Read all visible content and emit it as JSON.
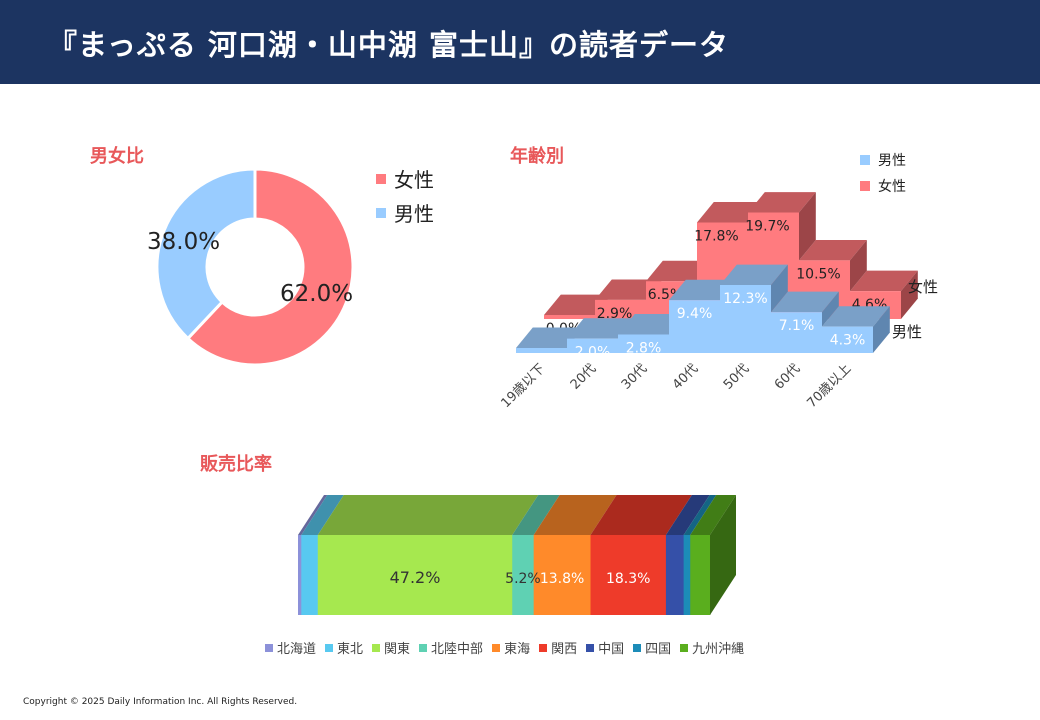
{
  "header": {
    "title": "『まっぷる 河口湖・山中湖 富士山』の読者データ"
  },
  "footer": {
    "copyright": "Copyright © 2025 Daily Information Inc. All Rights Reserved."
  },
  "sections": {
    "gender": "男女比",
    "age": "年齢別",
    "sales": "販売比率"
  },
  "colors": {
    "female": "#ff7b7f",
    "male": "#99ccff",
    "regions": [
      "#8c91d9",
      "#58c9f0",
      "#a6e84f",
      "#5fd1b3",
      "#ff8a2a",
      "#ee3b2a",
      "#3550a8",
      "#1c8cb8",
      "#5aae1e"
    ]
  },
  "chart_data": [
    {
      "type": "pie",
      "title": "男女比",
      "labels": [
        "女性",
        "男性"
      ],
      "values": [
        62.0,
        38.0
      ],
      "value_labels": [
        "62.0%",
        "38.0%"
      ],
      "donut": true,
      "legend": "right"
    },
    {
      "type": "bar",
      "title": "年齢別",
      "style": "3d-stepped-area",
      "categories": [
        "19歳以下",
        "20代",
        "30代",
        "40代",
        "50代",
        "60代",
        "70歳以上"
      ],
      "series": [
        {
          "name": "男性",
          "values": [
            0.2,
            2.0,
            2.8,
            9.4,
            12.3,
            7.1,
            4.3
          ],
          "labels": [
            "0.2%",
            "2.0%",
            "2.8%",
            "9.4%",
            "12.3%",
            "7.1%",
            "4.3%"
          ]
        },
        {
          "name": "女性",
          "values": [
            0.0,
            2.9,
            6.5,
            17.8,
            19.7,
            10.5,
            4.6
          ],
          "labels": [
            "0.0%",
            "2.9%",
            "6.5%",
            "17.8%",
            "19.7%",
            "10.5%",
            "4.6%"
          ]
        }
      ],
      "depth_labels": [
        "女性",
        "男性"
      ],
      "legend": "top-right"
    },
    {
      "type": "bar",
      "title": "販売比率",
      "style": "3d-stacked-horizontal-100",
      "categories": [
        "北海道",
        "東北",
        "関東",
        "北陸中部",
        "東海",
        "関西",
        "中国",
        "四国",
        "九州沖縄"
      ],
      "values": [
        0.8,
        4.0,
        47.2,
        5.2,
        13.8,
        18.3,
        4.3,
        1.6,
        4.8
      ],
      "value_labels": [
        "",
        "",
        "47.2%",
        "5.2%",
        "13.8%",
        "18.3%",
        "",
        "",
        ""
      ],
      "legend": "bottom"
    }
  ]
}
